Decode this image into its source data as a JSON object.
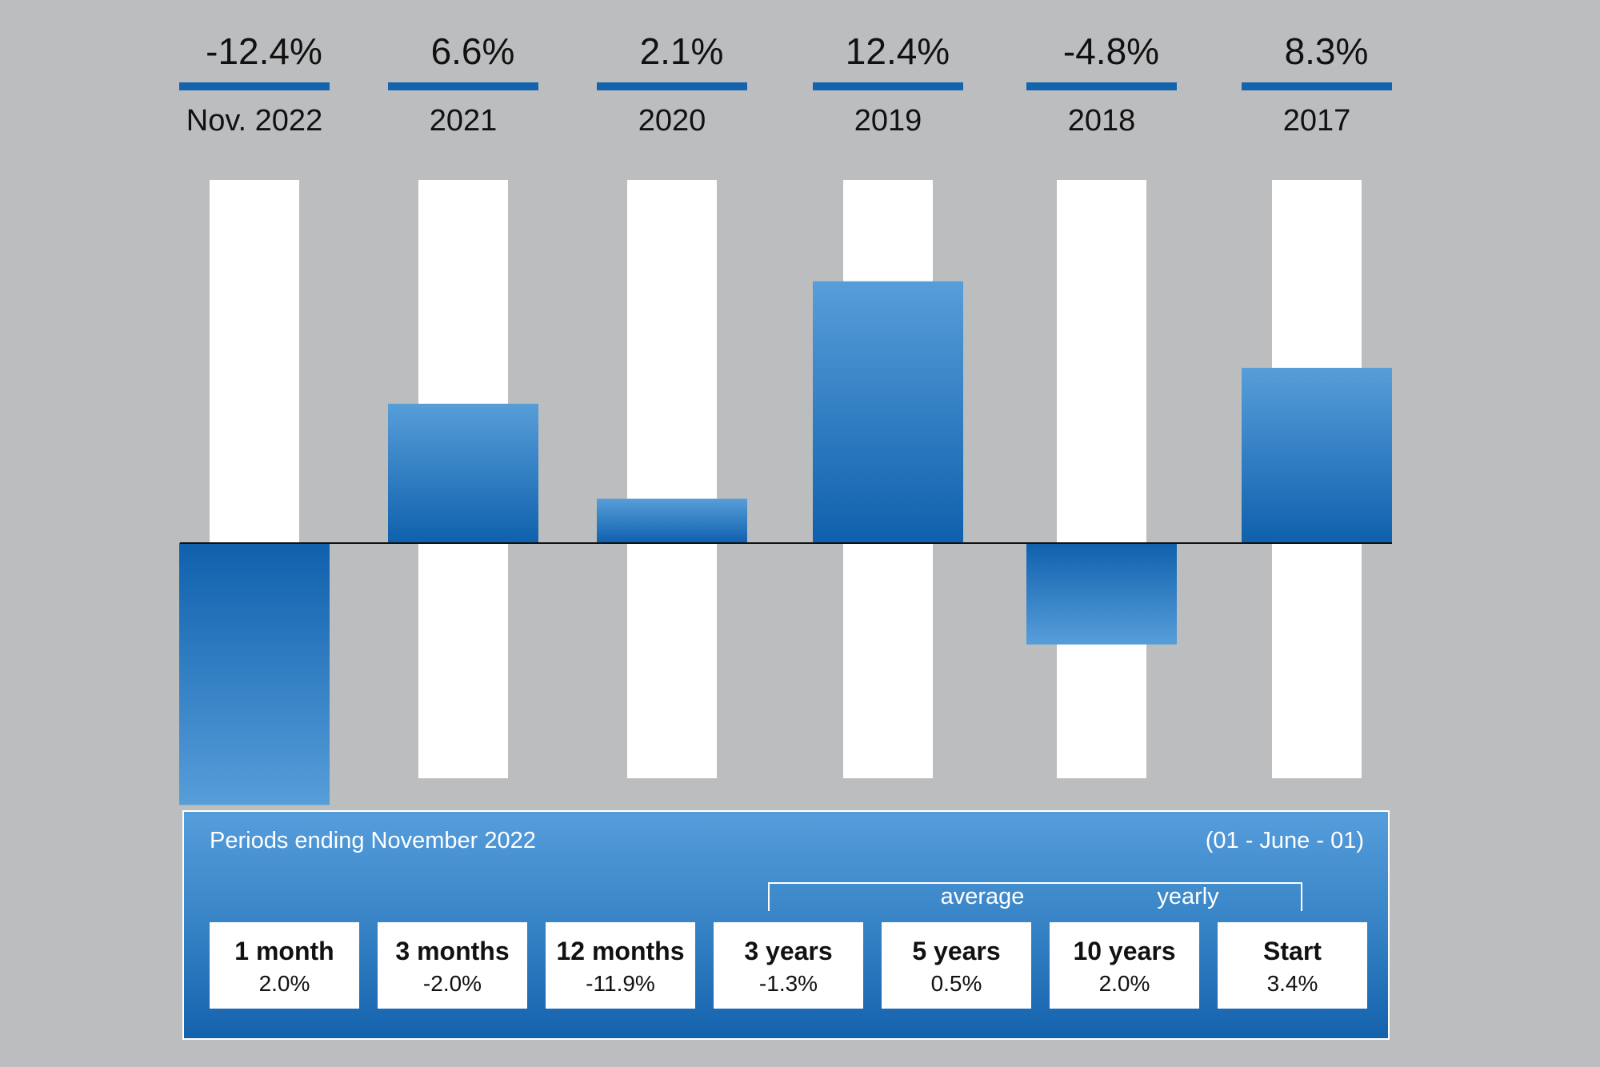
{
  "chart_data": {
    "type": "bar",
    "categories": [
      "Nov. 2022",
      "2021",
      "2020",
      "2019",
      "2018",
      "2017"
    ],
    "values": [
      -12.4,
      6.6,
      2.1,
      12.4,
      -4.8,
      8.3
    ],
    "value_labels": [
      "-12.4%",
      "6.6%",
      "2.1%",
      "12.4%",
      "-4.8%",
      "8.3%"
    ],
    "ylim": [
      -17.7,
      20.8
    ],
    "title": "",
    "xlabel": "",
    "ylabel": "",
    "grid": false,
    "legend": "none"
  },
  "colors": {
    "background": "#bcbdbf",
    "bar_light": "#579ed9",
    "bar_dark": "#0f60ad",
    "header_line": "#1463ad",
    "track": "#ffffff",
    "baseline": "#111111"
  },
  "summary": {
    "title": "Periods ending November 2022",
    "range": "(01 - June - 01)",
    "bracket_left": "average",
    "bracket_right": "yearly",
    "periods": [
      {
        "label": "1 month",
        "value": "2.0%"
      },
      {
        "label": "3 months",
        "value": "-2.0%"
      },
      {
        "label": "12 months",
        "value": "-11.9%"
      },
      {
        "label": "3 years",
        "value": "-1.3%"
      },
      {
        "label": "5 years",
        "value": "0.5%"
      },
      {
        "label": "10 years",
        "value": "2.0%"
      },
      {
        "label": "Start",
        "value": "3.4%"
      }
    ]
  }
}
